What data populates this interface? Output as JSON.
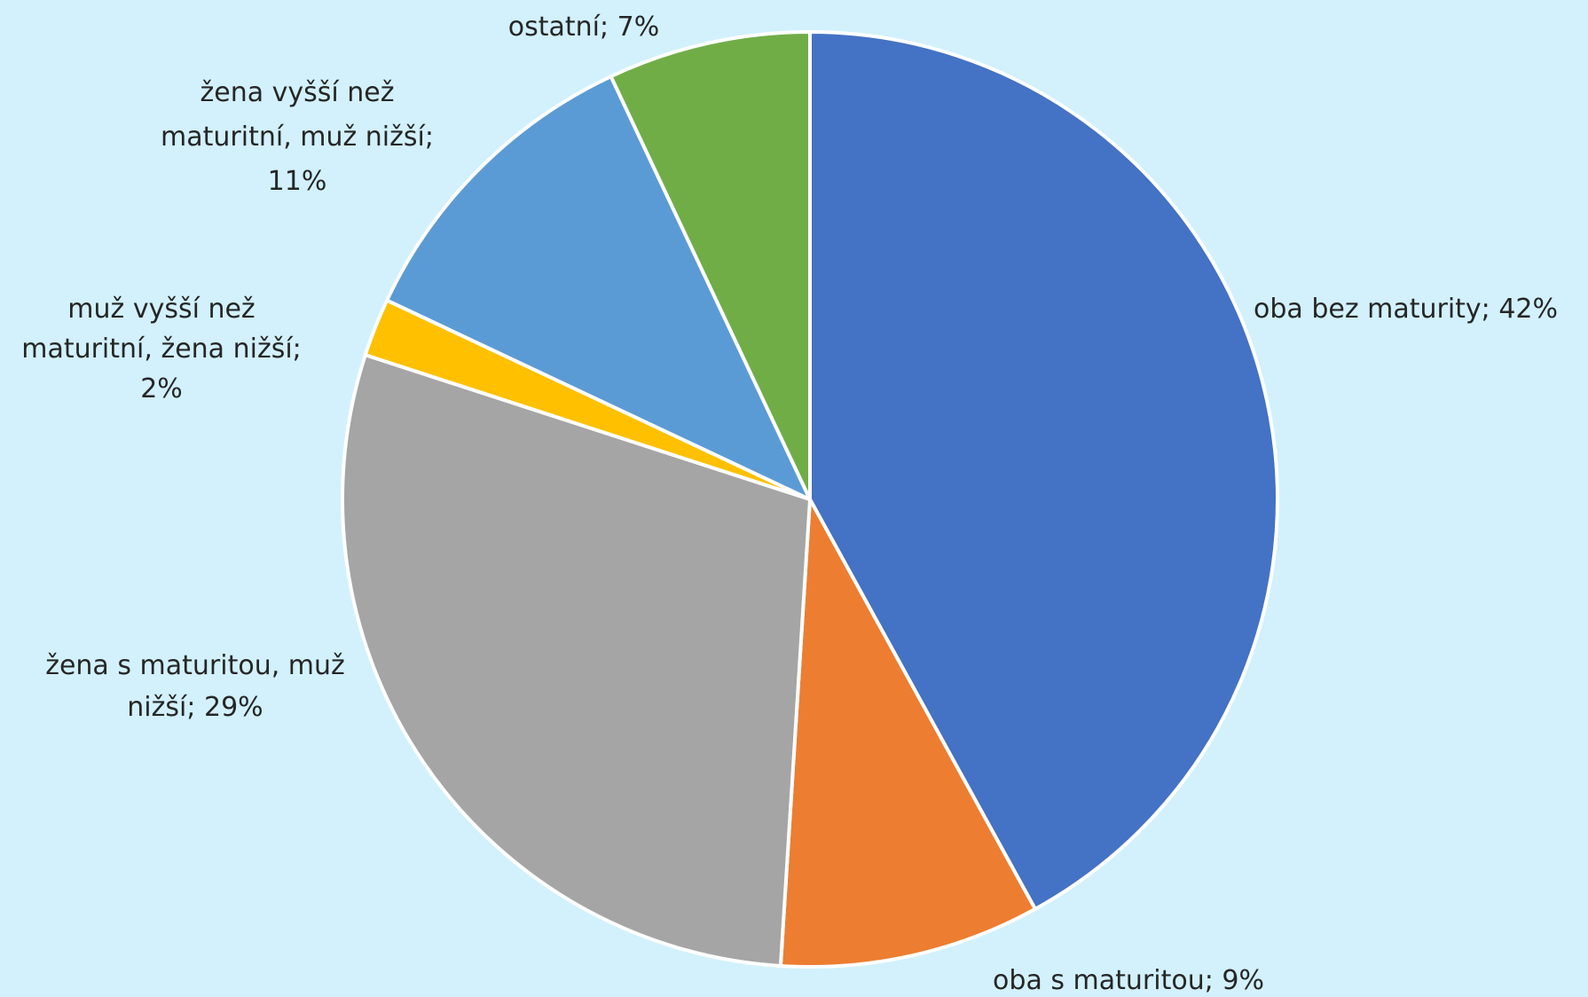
{
  "chart_data": {
    "type": "pie",
    "title": "",
    "start": "top",
    "direction": "clockwise",
    "slices": [
      {
        "label": "oba bez maturity",
        "value": 42,
        "display": "oba bez maturity; 42%",
        "color": "#4472c4"
      },
      {
        "label": "oba s maturitou",
        "value": 9,
        "display": "oba s maturitou; 9%",
        "color": "#ed7d31"
      },
      {
        "label": "žena s maturitou, muž nižší",
        "value": 29,
        "display": "žena s maturitou, muž nižší; 29%",
        "color": "#a5a5a5"
      },
      {
        "label": "muž vyšší než maturitní, žena nižší",
        "value": 2,
        "display": "muž vyšší než maturitní, žena nižší; 2%",
        "color": "#ffc000"
      },
      {
        "label": "žena vyšší než maturitní, muž nižší",
        "value": 11,
        "display": "žena vyšší než maturitní, muž nižší; 11%",
        "color": "#5b9bd5"
      },
      {
        "label": "ostatní",
        "value": 7,
        "display": "ostatní; 7%",
        "color": "#70ad47"
      }
    ],
    "background": "#d2f1fc"
  }
}
